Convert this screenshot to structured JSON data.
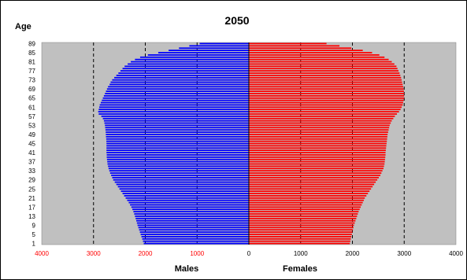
{
  "chart_data": {
    "type": "bar",
    "orientation": "horizontal",
    "title": "2050",
    "ylabel": "Age",
    "xlabels": {
      "left": "Males",
      "right": "Females"
    },
    "y_tick_labels": [
      "89",
      "85",
      "81",
      "77",
      "73",
      "69",
      "65",
      "61",
      "57",
      "53",
      "49",
      "45",
      "41",
      "37",
      "33",
      "29",
      "25",
      "21",
      "17",
      "13",
      "9",
      "5",
      "1"
    ],
    "x_tick_labels_left": [
      "4000",
      "3000",
      "2000",
      "1000",
      "0"
    ],
    "x_tick_labels_right": [
      "1000",
      "2000",
      "3000",
      "4000"
    ],
    "xlim": [
      -4000,
      4000
    ],
    "ages": [
      1,
      2,
      3,
      4,
      5,
      6,
      7,
      8,
      9,
      10,
      11,
      12,
      13,
      14,
      15,
      16,
      17,
      18,
      19,
      20,
      21,
      22,
      23,
      24,
      25,
      26,
      27,
      28,
      29,
      30,
      31,
      32,
      33,
      34,
      35,
      36,
      37,
      38,
      39,
      40,
      41,
      42,
      43,
      44,
      45,
      46,
      47,
      48,
      49,
      50,
      51,
      52,
      53,
      54,
      55,
      56,
      57,
      58,
      59,
      60,
      61,
      62,
      63,
      64,
      65,
      66,
      67,
      68,
      69,
      70,
      71,
      72,
      73,
      74,
      75,
      76,
      77,
      78,
      79,
      80,
      81,
      82,
      83,
      84,
      85,
      86,
      87,
      88,
      89
    ],
    "series": [
      {
        "name": "Males",
        "color": "#0000ff",
        "values": [
          2030,
          2045,
          2060,
          2075,
          2090,
          2105,
          2120,
          2135,
          2150,
          2162,
          2175,
          2187,
          2200,
          2215,
          2230,
          2250,
          2270,
          2295,
          2320,
          2350,
          2380,
          2410,
          2440,
          2470,
          2500,
          2530,
          2560,
          2590,
          2620,
          2640,
          2660,
          2680,
          2695,
          2710,
          2720,
          2730,
          2735,
          2740,
          2745,
          2745,
          2750,
          2750,
          2750,
          2750,
          2750,
          2752,
          2755,
          2760,
          2762,
          2765,
          2770,
          2775,
          2780,
          2790,
          2800,
          2820,
          2850,
          2900,
          2910,
          2900,
          2890,
          2880,
          2860,
          2840,
          2820,
          2800,
          2780,
          2760,
          2740,
          2720,
          2690,
          2670,
          2640,
          2600,
          2560,
          2520,
          2480,
          2440,
          2400,
          2340,
          2280,
          2200,
          2100,
          1950,
          1750,
          1550,
          1350,
          1150,
          950
        ]
      },
      {
        "name": "Females",
        "color": "#ff0000",
        "values": [
          1950,
          1960,
          1970,
          1980,
          1990,
          2000,
          2010,
          2020,
          2030,
          2045,
          2060,
          2075,
          2090,
          2105,
          2120,
          2140,
          2160,
          2180,
          2200,
          2220,
          2240,
          2270,
          2300,
          2330,
          2360,
          2390,
          2420,
          2450,
          2480,
          2510,
          2540,
          2560,
          2580,
          2600,
          2610,
          2620,
          2625,
          2630,
          2635,
          2640,
          2640,
          2645,
          2650,
          2655,
          2660,
          2665,
          2670,
          2675,
          2680,
          2690,
          2700,
          2710,
          2720,
          2740,
          2760,
          2790,
          2820,
          2860,
          2900,
          2930,
          2950,
          2970,
          2980,
          2990,
          3000,
          3000,
          3000,
          2995,
          2990,
          2980,
          2970,
          2960,
          2950,
          2940,
          2925,
          2910,
          2890,
          2870,
          2850,
          2810,
          2760,
          2700,
          2620,
          2520,
          2380,
          2200,
          1980,
          1750,
          1500
        ]
      }
    ],
    "grid": "vertical dashed at 1000 intervals"
  }
}
